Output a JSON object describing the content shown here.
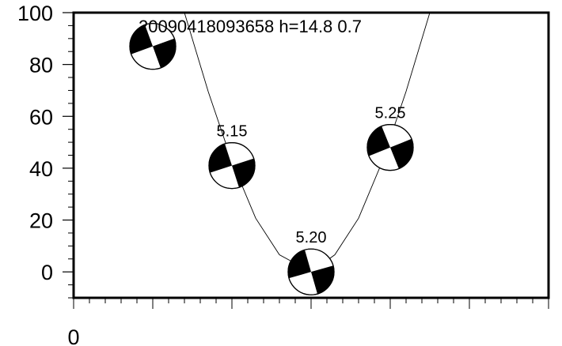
{
  "chart_data": {
    "type": "scatter",
    "title": "20090418093658 h=14.8  0.7",
    "xlim": [
      0,
      6
    ],
    "ylim": [
      -10,
      100
    ],
    "y_ticks": [
      0,
      20,
      40,
      60,
      80,
      100
    ],
    "y_tick_labels": [
      "0",
      "20",
      "40",
      "60",
      "80",
      "100"
    ],
    "x_tick_labels": [
      "0"
    ],
    "grid": false,
    "series": [
      {
        "name": "misfit-curve",
        "type": "line",
        "x": [
          1.4,
          1.7,
          2.0,
          2.3,
          2.6,
          3.0,
          3.3,
          3.6,
          3.9,
          4.2,
          4.5
        ],
        "y": [
          100,
          69.6,
          42.6,
          20.7,
          6.6,
          0,
          6.6,
          20.7,
          42.6,
          69.6,
          100
        ]
      },
      {
        "name": "focal-mechanisms",
        "type": "beachball",
        "points": [
          {
            "label": "",
            "x": 1.0,
            "y": 87,
            "strike_deg": -20
          },
          {
            "label": "5.15",
            "x": 2.0,
            "y": 41,
            "strike_deg": -18
          },
          {
            "label": "5.20",
            "x": 3.0,
            "y": 0,
            "strike_deg": -16
          },
          {
            "label": "5.25",
            "x": 4.0,
            "y": 48,
            "strike_deg": -22
          }
        ]
      }
    ]
  }
}
